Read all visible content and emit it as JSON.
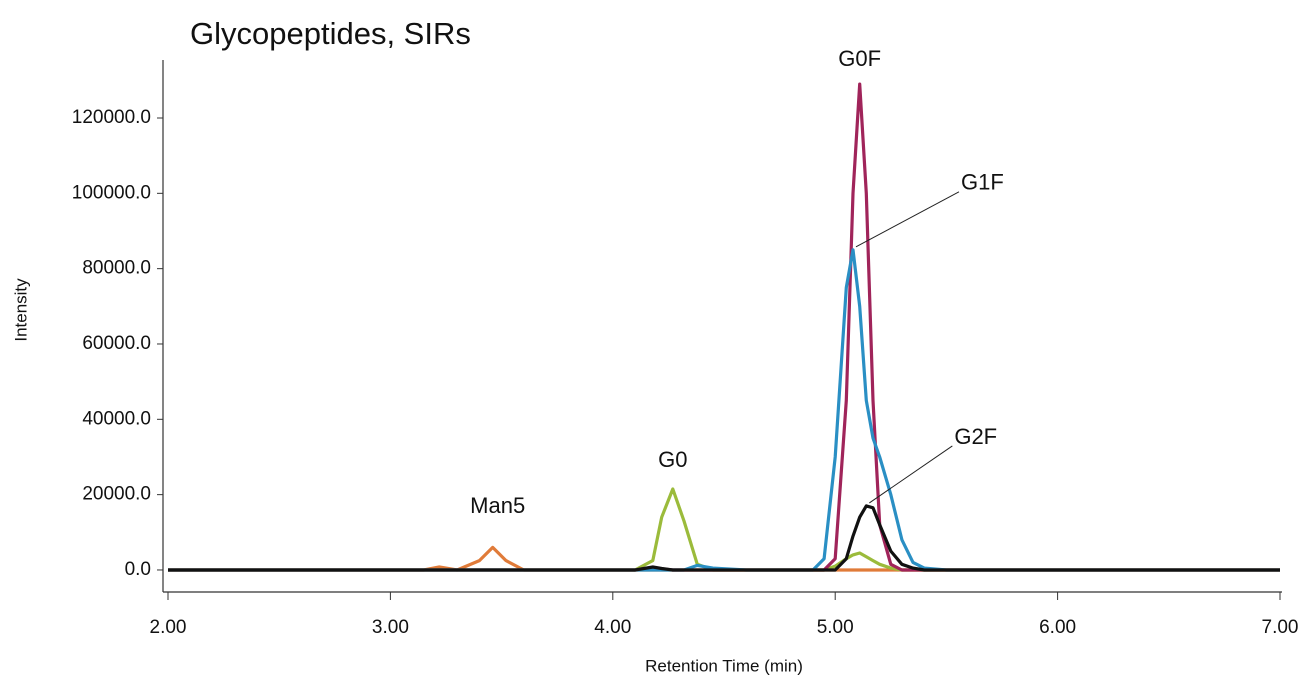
{
  "chart_data": {
    "type": "line",
    "title": "Glycopeptides, SIRs",
    "x_label": "Retention Time (min)",
    "y_label": "Intensity",
    "x": [
      2.0,
      3.0,
      3.15,
      3.22,
      3.3,
      3.4,
      3.46,
      3.52,
      3.6,
      3.8,
      4.0,
      4.1,
      4.18,
      4.22,
      4.27,
      4.32,
      4.38,
      4.45,
      4.6,
      4.9,
      4.95,
      5.0,
      5.05,
      5.08,
      5.11,
      5.14,
      5.17,
      5.2,
      5.25,
      5.3,
      5.35,
      5.4,
      5.5,
      6.0,
      7.0
    ],
    "series": [
      {
        "name": "Man5",
        "color": "#e07b39",
        "values": [
          0,
          0,
          0,
          800,
          0,
          2500,
          6000,
          2500,
          0,
          0,
          0,
          0,
          0,
          0,
          0,
          0,
          0,
          0,
          0,
          0,
          0,
          0,
          0,
          0,
          0,
          0,
          0,
          0,
          0,
          0,
          0,
          0,
          0,
          0,
          0
        ]
      },
      {
        "name": "G0",
        "color": "#9bbb3b",
        "values": [
          0,
          0,
          0,
          0,
          0,
          0,
          0,
          0,
          0,
          0,
          0,
          0,
          2500,
          14000,
          21500,
          13000,
          1500,
          0,
          0,
          0,
          0,
          1000,
          3000,
          4000,
          4500,
          3500,
          2500,
          1500,
          500,
          0,
          0,
          0,
          0,
          0,
          0
        ]
      },
      {
        "name": "G0F",
        "color": "#a0245a",
        "values": [
          0,
          0,
          0,
          0,
          0,
          0,
          0,
          0,
          0,
          0,
          0,
          0,
          700,
          300,
          0,
          0,
          0,
          0,
          0,
          0,
          0,
          3000,
          45000,
          100000,
          129000,
          100000,
          45000,
          12000,
          1500,
          0,
          0,
          0,
          0,
          0,
          0
        ]
      },
      {
        "name": "G1F",
        "color": "#2a8fc4",
        "values": [
          0,
          0,
          0,
          0,
          0,
          0,
          0,
          0,
          0,
          0,
          0,
          0,
          0,
          0,
          0,
          0,
          1200,
          500,
          0,
          0,
          3000,
          30000,
          75000,
          85000,
          70000,
          45000,
          35000,
          30000,
          20000,
          8000,
          2000,
          500,
          0,
          0,
          0
        ]
      },
      {
        "name": "G2F",
        "color": "#111111",
        "values": [
          0,
          0,
          0,
          0,
          0,
          0,
          0,
          0,
          0,
          0,
          0,
          0,
          800,
          400,
          0,
          0,
          0,
          0,
          0,
          0,
          0,
          0,
          3000,
          9000,
          14000,
          17000,
          16500,
          12000,
          5000,
          1500,
          500,
          0,
          0,
          0,
          0
        ]
      }
    ],
    "xlim": [
      2,
      7
    ],
    "xticks": [
      {
        "value": 2,
        "label": "2.00"
      },
      {
        "value": 3,
        "label": "3.00"
      },
      {
        "value": 4,
        "label": "4.00"
      },
      {
        "value": 5,
        "label": "5.00"
      },
      {
        "value": 6,
        "label": "6.00"
      },
      {
        "value": 7,
        "label": "7.00"
      }
    ],
    "ylim": [
      -5000,
      135000
    ],
    "yticks": [
      {
        "value": 0,
        "label": "0.0"
      },
      {
        "value": 20000,
        "label": "20000.0"
      },
      {
        "value": 40000,
        "label": "40000.0"
      },
      {
        "value": 60000,
        "label": "60000.0"
      },
      {
        "value": 80000,
        "label": "80000.0"
      },
      {
        "value": 100000,
        "label": "100000.0"
      },
      {
        "value": 120000,
        "label": "120000.0"
      }
    ],
    "grid": false
  }
}
